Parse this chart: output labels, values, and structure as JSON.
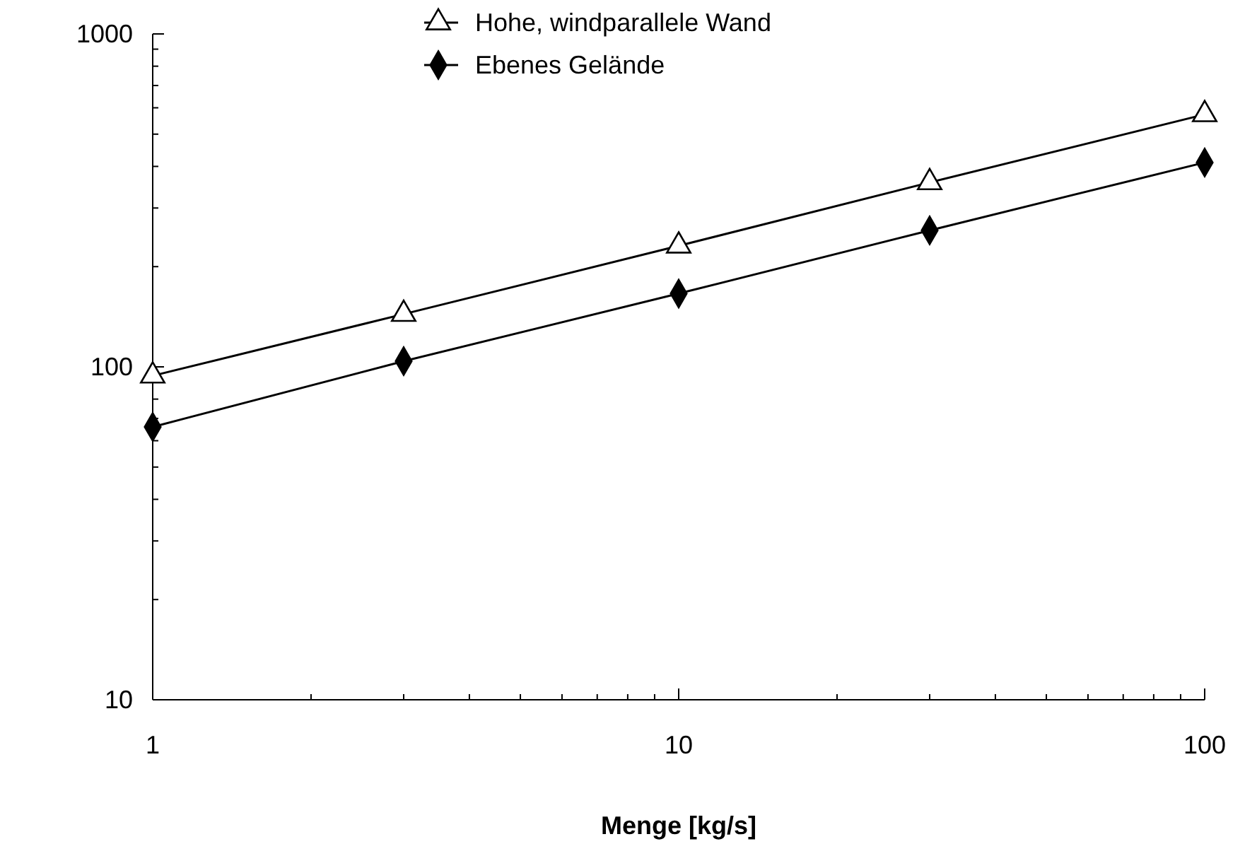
{
  "chart_data": {
    "type": "line",
    "xlabel": "Menge [kg/s]",
    "log": "xy",
    "grid": false,
    "legend": "top",
    "line_style": "solid",
    "xlim": [
      1,
      100
    ],
    "ylim": [
      10,
      1000
    ],
    "xticks": [
      1,
      {
        "value": 2,
        "label": null
      },
      {
        "value": 3,
        "label": null
      },
      {
        "value": 4,
        "label": null
      },
      {
        "value": 5,
        "label": null
      },
      {
        "value": 6,
        "label": null
      },
      {
        "value": 7,
        "label": null
      },
      {
        "value": 8,
        "label": null
      },
      {
        "value": 9,
        "label": null
      },
      10,
      {
        "value": 20,
        "label": null
      },
      {
        "value": 30,
        "label": null
      },
      {
        "value": 40,
        "label": null
      },
      {
        "value": 50,
        "label": null
      },
      {
        "value": 60,
        "label": null
      },
      {
        "value": 70,
        "label": null
      },
      {
        "value": 80,
        "label": null
      },
      {
        "value": 90,
        "label": null
      },
      100
    ],
    "yticks": [
      10,
      {
        "value": 20,
        "label": null
      },
      {
        "value": 30,
        "label": null
      },
      {
        "value": 40,
        "label": null
      },
      {
        "value": 50,
        "label": null
      },
      {
        "value": 60,
        "label": null
      },
      {
        "value": 70,
        "label": null
      },
      {
        "value": 80,
        "label": null
      },
      {
        "value": 90,
        "label": null
      },
      100,
      {
        "value": 200,
        "label": null
      },
      {
        "value": 300,
        "label": null
      },
      {
        "value": 400,
        "label": null
      },
      {
        "value": 500,
        "label": null
      },
      {
        "value": 600,
        "label": null
      },
      {
        "value": 700,
        "label": null
      },
      {
        "value": 800,
        "label": null
      },
      {
        "value": 900,
        "label": null
      },
      1000
    ],
    "x": [
      1,
      3,
      10,
      30,
      100
    ],
    "series": [
      {
        "name": "Hohe, windparallele Wand",
        "color": "#000000",
        "marker": "triangle",
        "values": [
          94,
          144,
          231,
          358,
          573
        ]
      },
      {
        "name": "Ebenes Gelände",
        "color": "#000000",
        "marker": "diamond",
        "values": [
          66,
          104,
          166,
          257,
          411
        ]
      }
    ]
  }
}
